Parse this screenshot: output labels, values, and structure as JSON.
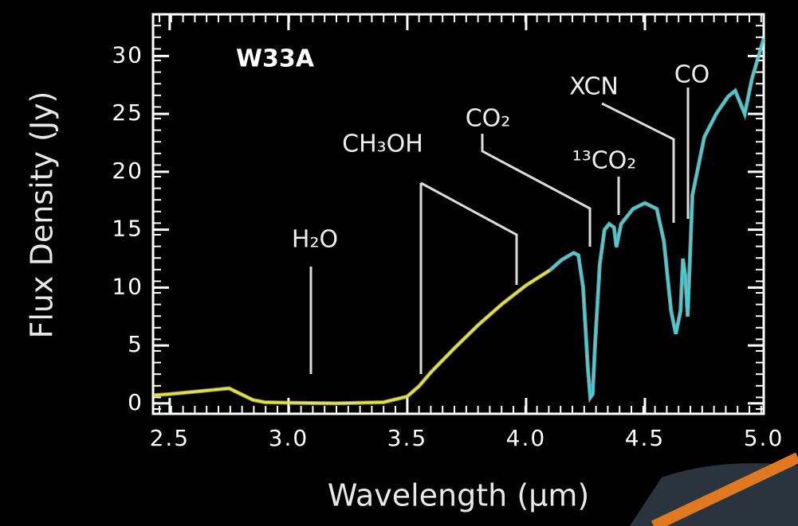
{
  "chart_data": {
    "type": "line",
    "title": "W33A",
    "x_label": "Wavelength (µm)",
    "y_label": "Flux Density (Jy)",
    "xlim": [
      2.43,
      5.0
    ],
    "ylim": [
      -0.9,
      33.6
    ],
    "xticks": [
      2.5,
      {
        "value": 3,
        "label": "3.0"
      },
      3.5,
      {
        "value": 4,
        "label": "4.0"
      },
      4.5,
      {
        "value": 5,
        "label": "5.0"
      }
    ],
    "yticks": [
      0,
      5,
      10,
      15,
      20,
      25,
      30
    ],
    "annotations": [
      "H₂O",
      "CH₃OH",
      "CO₂",
      "¹³CO₂",
      "XCN",
      "CO"
    ],
    "series": [
      {
        "color": "#e6e62e",
        "x": [
          2.43,
          2.5,
          2.6,
          2.7,
          2.75,
          2.8,
          2.85,
          2.9,
          3.0,
          3.2,
          3.4,
          3.5,
          3.55,
          3.6,
          3.7,
          3.8,
          3.9,
          4.0,
          4.1
        ],
        "values": [
          0.7,
          0.8,
          1.0,
          1.2,
          1.3,
          0.8,
          0.3,
          0.1,
          0.05,
          0,
          0.1,
          0.6,
          1.5,
          2.7,
          4.8,
          6.8,
          8.6,
          10.2,
          11.5
        ]
      },
      {
        "color": "#3fd0d8",
        "x": [
          4.1,
          4.15,
          4.2,
          4.22,
          4.24,
          4.26,
          4.27,
          4.28,
          4.29,
          4.31,
          4.33,
          4.35,
          4.37,
          4.38,
          4.4,
          4.45,
          4.5,
          4.55,
          4.58,
          4.61,
          4.63,
          4.65,
          4.66,
          4.67,
          4.68,
          4.7,
          4.75,
          4.8,
          4.85,
          4.88,
          4.9,
          4.92,
          4.95,
          5.0
        ],
        "values": [
          11.5,
          12.4,
          13,
          12.8,
          10,
          3,
          0.5,
          0.8,
          5,
          12,
          15,
          15.5,
          15.2,
          13.5,
          15.5,
          16.8,
          17.3,
          16.8,
          14,
          8,
          6,
          8,
          12.5,
          11,
          7.5,
          18,
          23,
          25,
          26.5,
          27,
          26,
          25,
          28,
          31.5
        ]
      }
    ]
  }
}
